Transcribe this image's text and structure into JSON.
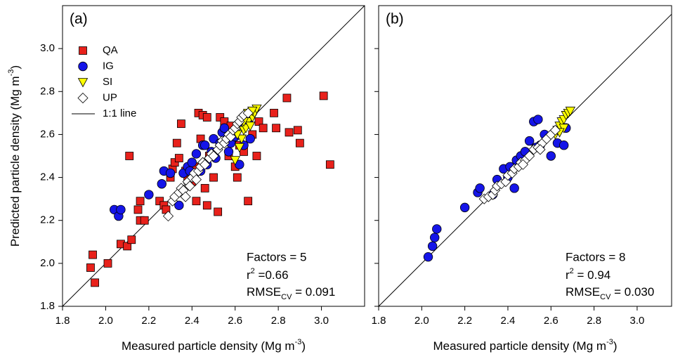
{
  "chart_data": [
    {
      "type": "scatter",
      "title": "(a)",
      "xlabel": {
        "text": "Measured particle density (Mg m",
        "sup": "-3",
        "end": ")"
      },
      "ylabel": {
        "text": "Predicted particle density (Mg m",
        "sup": "-3",
        "end": ")"
      },
      "xlim": [
        1.8,
        3.2
      ],
      "ylim": [
        1.8,
        3.2
      ],
      "xticks": [
        1.8,
        {
          "value": 2,
          "label": "2.0"
        },
        2.2,
        2.4,
        2.6,
        2.8,
        {
          "value": 3,
          "label": "3.0"
        }
      ],
      "yticks": [
        1.8,
        {
          "value": 2,
          "label": "2.0"
        },
        2.2,
        2.4,
        2.6,
        2.8,
        {
          "value": 3,
          "label": "3.0"
        }
      ],
      "legend": "upper left",
      "line_label": "1:1 line",
      "series": [
        {
          "name": "QA",
          "color": "#e8211b",
          "marker": "square",
          "x": [
            1.93,
            1.94,
            1.95,
            2.01,
            2.07,
            2.1,
            2.12,
            2.11,
            2.15,
            2.16,
            2.16,
            2.18,
            2.25,
            2.27,
            2.28,
            2.3,
            2.31,
            2.32,
            2.33,
            2.34,
            2.35,
            2.37,
            2.38,
            2.4,
            2.41,
            2.43,
            2.44,
            2.45,
            2.46,
            2.47,
            2.48,
            2.5,
            2.52,
            2.53,
            2.55,
            2.57,
            2.58,
            2.6,
            2.61,
            2.62,
            2.64,
            2.66,
            2.68,
            2.7,
            2.71,
            2.73,
            2.78,
            2.79,
            2.84,
            2.85,
            2.89,
            2.9,
            3.01,
            3.04,
            2.47,
            2.42
          ],
          "y": [
            1.98,
            2.04,
            1.91,
            2.0,
            2.09,
            2.08,
            2.11,
            2.5,
            2.25,
            2.29,
            2.2,
            2.2,
            2.29,
            2.27,
            2.25,
            2.4,
            2.44,
            2.47,
            2.56,
            2.49,
            2.65,
            2.43,
            2.39,
            2.38,
            2.45,
            2.7,
            2.58,
            2.69,
            2.35,
            2.68,
            2.5,
            2.4,
            2.24,
            2.68,
            2.66,
            2.5,
            2.64,
            2.45,
            2.4,
            2.55,
            2.52,
            2.29,
            2.6,
            2.5,
            2.66,
            2.63,
            2.7,
            2.63,
            2.77,
            2.61,
            2.62,
            2.56,
            2.78,
            2.46,
            2.27,
            2.29
          ]
        },
        {
          "name": "IG",
          "color": "#1515e8",
          "marker": "circle",
          "x": [
            2.04,
            2.06,
            2.07,
            2.2,
            2.26,
            2.27,
            2.3,
            2.34,
            2.36,
            2.38,
            2.4,
            2.41,
            2.42,
            2.44,
            2.45,
            2.47,
            2.49,
            2.5,
            2.51,
            2.53,
            2.54,
            2.55,
            2.57,
            2.58,
            2.6,
            2.62,
            2.63,
            2.64,
            2.66,
            2.67,
            2.39,
            2.46
          ],
          "y": [
            2.25,
            2.22,
            2.25,
            2.32,
            2.37,
            2.43,
            2.42,
            2.27,
            2.42,
            2.45,
            2.47,
            2.41,
            2.51,
            2.43,
            2.55,
            2.46,
            2.52,
            2.58,
            2.49,
            2.56,
            2.61,
            2.63,
            2.52,
            2.56,
            2.59,
            2.46,
            2.65,
            2.55,
            2.66,
            2.58,
            2.43,
            2.55
          ]
        },
        {
          "name": "SI",
          "color": "#ffff00",
          "marker": "triangle-down",
          "x": [
            2.6,
            2.62,
            2.63,
            2.64,
            2.65,
            2.66,
            2.67,
            2.68,
            2.69,
            2.7,
            2.61,
            2.66,
            2.68,
            2.64
          ],
          "y": [
            2.48,
            2.54,
            2.58,
            2.62,
            2.63,
            2.66,
            2.64,
            2.68,
            2.7,
            2.72,
            2.6,
            2.7,
            2.71,
            2.66
          ]
        },
        {
          "name": "UP",
          "color": "#ffffff",
          "marker": "diamond",
          "x": [
            2.29,
            2.31,
            2.32,
            2.34,
            2.35,
            2.36,
            2.38,
            2.39,
            2.4,
            2.41,
            2.43,
            2.44,
            2.45,
            2.46,
            2.48,
            2.49,
            2.5,
            2.52,
            2.53,
            2.54,
            2.55,
            2.56,
            2.57,
            2.58,
            2.59,
            2.6,
            2.61,
            2.62,
            2.63,
            2.64,
            2.66,
            2.37,
            2.42
          ],
          "y": [
            2.22,
            2.29,
            2.31,
            2.33,
            2.35,
            2.34,
            2.38,
            2.36,
            2.4,
            2.42,
            2.43,
            2.45,
            2.47,
            2.46,
            2.49,
            2.51,
            2.5,
            2.53,
            2.55,
            2.57,
            2.56,
            2.58,
            2.6,
            2.59,
            2.62,
            2.63,
            2.65,
            2.66,
            2.68,
            2.69,
            2.7,
            2.31,
            2.39
          ]
        }
      ],
      "annotations": {
        "factors": "Factors = 5",
        "r2": {
          "base": "r",
          "sup": "2",
          "rest": " =0.66"
        },
        "rmse": {
          "base": "RMSE",
          "sub": "CV",
          "rest": " = 0.091"
        }
      }
    },
    {
      "type": "scatter",
      "title": "(b)",
      "xlabel": {
        "text": "Measured particle density (Mg m",
        "sup": "-3",
        "end": ")"
      },
      "xlim": [
        1.8,
        3.16
      ],
      "ylim": [
        1.8,
        3.2
      ],
      "xticks": [
        1.8,
        {
          "value": 2,
          "label": "2.0"
        },
        2.2,
        2.4,
        2.6,
        2.8,
        {
          "value": 3,
          "label": "3.0"
        }
      ],
      "yticks": [
        1.8,
        2,
        2.2,
        2.4,
        2.6,
        2.8,
        3
      ],
      "show_ytick_labels": false,
      "series": [
        {
          "color": "#1515e8",
          "marker": "circle",
          "x": [
            2.03,
            2.05,
            2.06,
            2.07,
            2.2,
            2.26,
            2.27,
            2.33,
            2.36,
            2.38,
            2.4,
            2.41,
            2.43,
            2.44,
            2.46,
            2.48,
            2.5,
            2.52,
            2.54,
            2.55,
            2.57,
            2.6,
            2.63,
            2.66,
            2.67,
            2.53,
            2.35
          ],
          "y": [
            2.03,
            2.08,
            2.12,
            2.16,
            2.26,
            2.33,
            2.35,
            2.32,
            2.37,
            2.44,
            2.4,
            2.45,
            2.35,
            2.48,
            2.5,
            2.52,
            2.57,
            2.66,
            2.67,
            2.55,
            2.6,
            2.5,
            2.56,
            2.55,
            2.63,
            2.54,
            2.39
          ]
        },
        {
          "color": "#ffff00",
          "marker": "triangle-down",
          "x": [
            2.62,
            2.63,
            2.64,
            2.65,
            2.66,
            2.67,
            2.68,
            2.69,
            2.66,
            2.64
          ],
          "y": [
            2.6,
            2.62,
            2.64,
            2.66,
            2.67,
            2.69,
            2.7,
            2.71,
            2.63,
            2.61
          ]
        },
        {
          "color": "#ffffff",
          "marker": "diamond",
          "x": [
            2.29,
            2.31,
            2.33,
            2.34,
            2.35,
            2.37,
            2.39,
            2.4,
            2.42,
            2.43,
            2.45,
            2.46,
            2.48,
            2.5,
            2.52,
            2.54,
            2.56,
            2.58,
            2.6,
            2.62,
            2.47,
            2.55
          ],
          "y": [
            2.3,
            2.31,
            2.32,
            2.34,
            2.36,
            2.37,
            2.38,
            2.41,
            2.42,
            2.44,
            2.45,
            2.47,
            2.48,
            2.5,
            2.53,
            2.54,
            2.56,
            2.58,
            2.6,
            2.62,
            2.46,
            2.53
          ]
        }
      ],
      "annotations": {
        "factors": "Factors = 8",
        "r2": {
          "base": "r",
          "sup": "2",
          "rest": " = 0.94"
        },
        "rmse": {
          "base": "RMSE",
          "sub": "CV",
          "rest": " = 0.030"
        }
      }
    }
  ]
}
